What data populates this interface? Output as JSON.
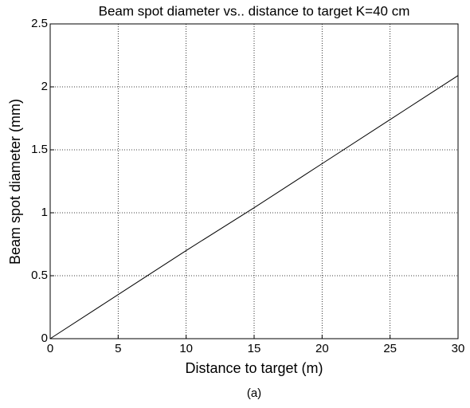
{
  "chart_data": {
    "type": "line",
    "title": "Beam spot diameter vs.. distance to target K=40 cm",
    "x_label": "Distance to target (m)",
    "y_label": "Beam spot diameter (mm)",
    "caption": "(a)",
    "x": [
      0,
      5,
      10,
      15,
      20,
      25,
      30
    ],
    "series": [
      {
        "name": "Beam spot diameter",
        "color": "#000000",
        "values": [
          0,
          0.35,
          0.7,
          1.04,
          1.39,
          1.74,
          2.09
        ]
      }
    ],
    "xlim": [
      0,
      30
    ],
    "xticks": [
      0,
      5,
      10,
      15,
      20,
      25,
      30
    ],
    "ylim": [
      0,
      2.5
    ],
    "yticks": [
      0,
      0.5,
      1,
      1.5,
      2,
      2.5
    ],
    "grid": true
  }
}
